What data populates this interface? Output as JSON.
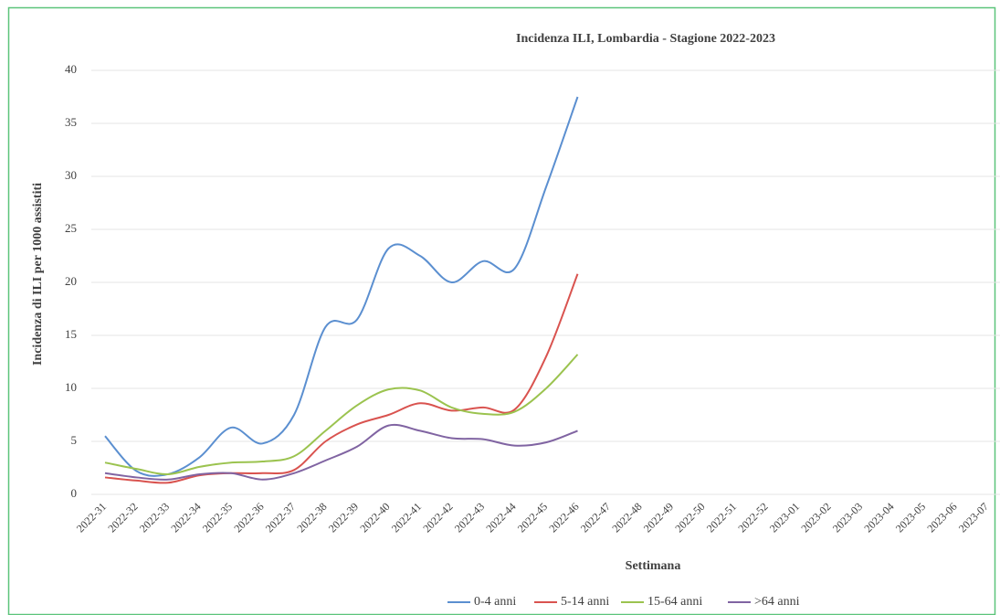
{
  "chart_data": {
    "type": "line",
    "title": "Incidenza ILI, Lombardia - Stagione 2022-2023",
    "y_label": "Incidenza di ILI per 1000 assistiti",
    "x_label": "Settimana",
    "categories": [
      "2022-31",
      "2022-32",
      "2022-33",
      "2022-34",
      "2022-35",
      "2022-36",
      "2022-37",
      "2022-38",
      "2022-39",
      "2022-40",
      "2022-41",
      "2022-42",
      "2022-43",
      "2022-44",
      "2022-45",
      "2022-46",
      "2022-47",
      "2022-48",
      "2022-49",
      "2022-50",
      "2022-51",
      "2022-52",
      "2023-01",
      "2023-02",
      "2023-03",
      "2023-04",
      "2023-05",
      "2023-06",
      "2023-07"
    ],
    "series": [
      {
        "name": "0-4 anni",
        "color": "#5b8fd0",
        "values": [
          5.5,
          2.2,
          1.9,
          3.5,
          6.3,
          4.8,
          7.5,
          15.8,
          16.5,
          23.2,
          22.5,
          20.0,
          22.0,
          21.3,
          29.0,
          37.5,
          null,
          null,
          null,
          null,
          null,
          null,
          null,
          null,
          null,
          null,
          null,
          null,
          null
        ]
      },
      {
        "name": "5-14 anni",
        "color": "#d9534f",
        "values": [
          1.6,
          1.3,
          1.1,
          1.8,
          2.0,
          2.0,
          2.3,
          5.0,
          6.6,
          7.5,
          8.6,
          7.9,
          8.2,
          8.0,
          13.0,
          20.8,
          null,
          null,
          null,
          null,
          null,
          null,
          null,
          null,
          null,
          null,
          null,
          null,
          null
        ]
      },
      {
        "name": "15-64 anni",
        "color": "#9bc34f",
        "values": [
          3.0,
          2.4,
          1.9,
          2.6,
          3.0,
          3.1,
          3.6,
          6.0,
          8.4,
          9.9,
          9.8,
          8.2,
          7.6,
          7.8,
          10.0,
          13.2,
          null,
          null,
          null,
          null,
          null,
          null,
          null,
          null,
          null,
          null,
          null,
          null,
          null
        ]
      },
      {
        "name": ">64 anni",
        "color": "#8064a2",
        "values": [
          2.0,
          1.6,
          1.4,
          1.9,
          2.0,
          1.4,
          2.0,
          3.2,
          4.5,
          6.5,
          6.0,
          5.3,
          5.2,
          4.6,
          4.9,
          6.0,
          null,
          null,
          null,
          null,
          null,
          null,
          null,
          null,
          null,
          null,
          null,
          null,
          null
        ]
      }
    ],
    "ylim": [
      0,
      40
    ],
    "yticks": [
      0,
      5,
      10,
      15,
      20,
      25,
      30,
      35,
      40
    ],
    "grid": true,
    "legend": "bottom"
  }
}
